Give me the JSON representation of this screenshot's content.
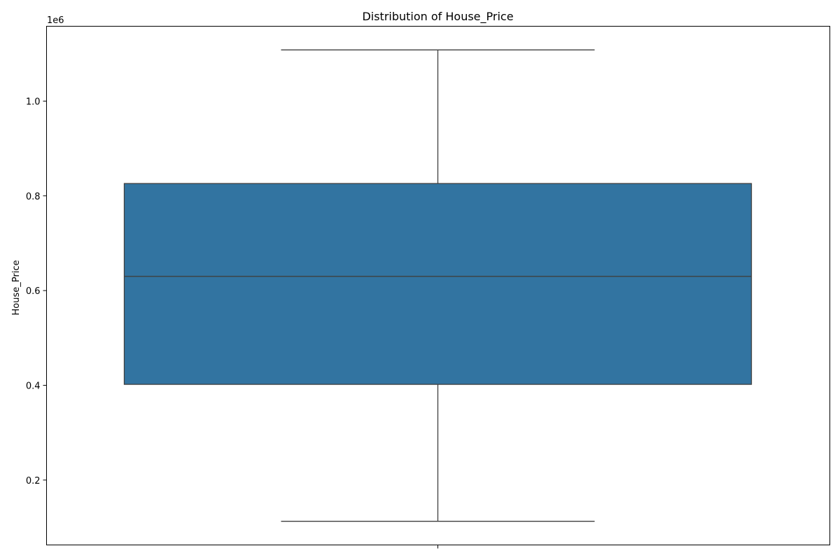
{
  "chart_data": {
    "type": "box",
    "title": "Distribution of House_Price",
    "xlabel": "",
    "ylabel": "House_Price",
    "y_offset_label": "1e6",
    "ylim": [
      63000,
      1158000
    ],
    "y_ticks": [
      0.2,
      0.4,
      0.6,
      0.8,
      1.0
    ],
    "y_tick_labels": [
      "0.2",
      "0.4",
      "0.6",
      "0.8",
      "1.0"
    ],
    "y_tick_scale": 1000000,
    "box": {
      "whisker_low": 113000,
      "q1": 402000,
      "median": 630000,
      "q3": 826000,
      "whisker_high": 1108000
    },
    "box_color": "#3274a1",
    "line_color": "#3f3f3f",
    "grid": false,
    "legend": "none"
  }
}
